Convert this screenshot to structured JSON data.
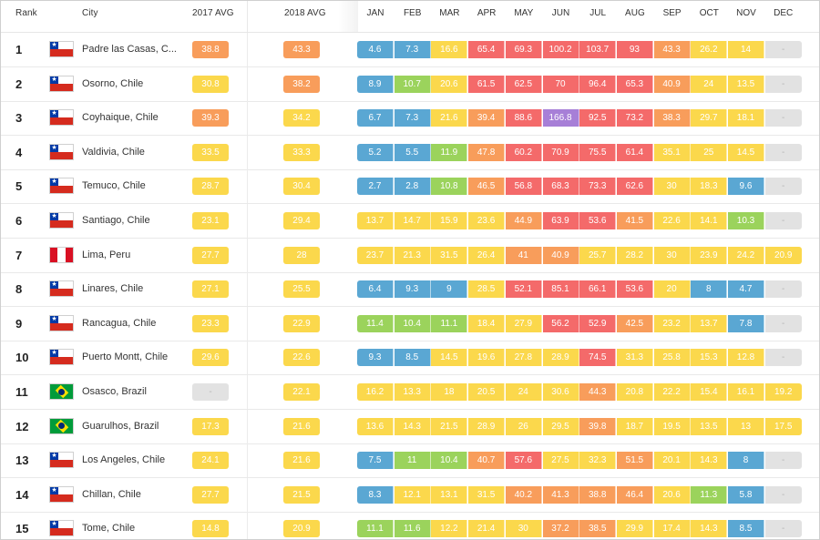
{
  "colors": {
    "blue": "#5aa7d3",
    "green": "#9bd35c",
    "yellow": "#fbd84c",
    "orange": "#f89d5b",
    "red": "#f46a6a",
    "purple": "#a77fd7",
    "gray": "#e2e2e2"
  },
  "header": {
    "rank": "Rank",
    "city": "City",
    "avg2017": "2017 AVG",
    "avg2018": "2018 AVG",
    "months": [
      "JAN",
      "FEB",
      "MAR",
      "APR",
      "MAY",
      "JUN",
      "JUL",
      "AUG",
      "SEP",
      "OCT",
      "NOV",
      "DEC"
    ]
  },
  "rows": [
    {
      "rank": "1",
      "country": "chile",
      "city": "Padre las Casas, C...",
      "avg2017": "38.8",
      "c2017": "orange",
      "avg2018": "43.3",
      "c2018": "orange",
      "months": [
        [
          "4.6",
          "blue"
        ],
        [
          "7.3",
          "blue"
        ],
        [
          "16.6",
          "yellow"
        ],
        [
          "65.4",
          "red"
        ],
        [
          "69.3",
          "red"
        ],
        [
          "100.2",
          "red"
        ],
        [
          "103.7",
          "red"
        ],
        [
          "93",
          "red"
        ],
        [
          "43.3",
          "orange"
        ],
        [
          "26.2",
          "yellow"
        ],
        [
          "14",
          "yellow"
        ],
        [
          "-",
          "gray"
        ]
      ]
    },
    {
      "rank": "2",
      "country": "chile",
      "city": "Osorno, Chile",
      "avg2017": "30.8",
      "c2017": "yellow",
      "avg2018": "38.2",
      "c2018": "orange",
      "months": [
        [
          "8.9",
          "blue"
        ],
        [
          "10.7",
          "green"
        ],
        [
          "20.6",
          "yellow"
        ],
        [
          "61.5",
          "red"
        ],
        [
          "62.5",
          "red"
        ],
        [
          "70",
          "red"
        ],
        [
          "96.4",
          "red"
        ],
        [
          "65.3",
          "red"
        ],
        [
          "40.9",
          "orange"
        ],
        [
          "24",
          "yellow"
        ],
        [
          "13.5",
          "yellow"
        ],
        [
          "-",
          "gray"
        ]
      ]
    },
    {
      "rank": "3",
      "country": "chile",
      "city": "Coyhaique, Chile",
      "avg2017": "39.3",
      "c2017": "orange",
      "avg2018": "34.2",
      "c2018": "yellow",
      "months": [
        [
          "6.7",
          "blue"
        ],
        [
          "7.3",
          "blue"
        ],
        [
          "21.6",
          "yellow"
        ],
        [
          "39.4",
          "orange"
        ],
        [
          "88.6",
          "red"
        ],
        [
          "166.8",
          "purple"
        ],
        [
          "92.5",
          "red"
        ],
        [
          "73.2",
          "red"
        ],
        [
          "38.3",
          "orange"
        ],
        [
          "29.7",
          "yellow"
        ],
        [
          "18.1",
          "yellow"
        ],
        [
          "-",
          "gray"
        ]
      ]
    },
    {
      "rank": "4",
      "country": "chile",
      "city": "Valdivia, Chile",
      "avg2017": "33.5",
      "c2017": "yellow",
      "avg2018": "33.3",
      "c2018": "yellow",
      "months": [
        [
          "5.2",
          "blue"
        ],
        [
          "5.5",
          "blue"
        ],
        [
          "11.9",
          "green"
        ],
        [
          "47.8",
          "orange"
        ],
        [
          "60.2",
          "red"
        ],
        [
          "70.9",
          "red"
        ],
        [
          "75.5",
          "red"
        ],
        [
          "61.4",
          "red"
        ],
        [
          "35.1",
          "yellow"
        ],
        [
          "25",
          "yellow"
        ],
        [
          "14.5",
          "yellow"
        ],
        [
          "-",
          "gray"
        ]
      ]
    },
    {
      "rank": "5",
      "country": "chile",
      "city": "Temuco, Chile",
      "avg2017": "28.7",
      "c2017": "yellow",
      "avg2018": "30.4",
      "c2018": "yellow",
      "months": [
        [
          "2.7",
          "blue"
        ],
        [
          "2.8",
          "blue"
        ],
        [
          "10.8",
          "green"
        ],
        [
          "46.5",
          "orange"
        ],
        [
          "56.8",
          "red"
        ],
        [
          "68.3",
          "red"
        ],
        [
          "73.3",
          "red"
        ],
        [
          "62.6",
          "red"
        ],
        [
          "30",
          "yellow"
        ],
        [
          "18.3",
          "yellow"
        ],
        [
          "9.6",
          "blue"
        ],
        [
          "-",
          "gray"
        ]
      ]
    },
    {
      "rank": "6",
      "country": "chile",
      "city": "Santiago, Chile",
      "avg2017": "23.1",
      "c2017": "yellow",
      "avg2018": "29.4",
      "c2018": "yellow",
      "months": [
        [
          "13.7",
          "yellow"
        ],
        [
          "14.7",
          "yellow"
        ],
        [
          "15.9",
          "yellow"
        ],
        [
          "23.6",
          "yellow"
        ],
        [
          "44.9",
          "orange"
        ],
        [
          "63.9",
          "red"
        ],
        [
          "53.6",
          "red"
        ],
        [
          "41.5",
          "orange"
        ],
        [
          "22.6",
          "yellow"
        ],
        [
          "14.1",
          "yellow"
        ],
        [
          "10.3",
          "green"
        ],
        [
          "-",
          "gray"
        ]
      ]
    },
    {
      "rank": "7",
      "country": "peru",
      "city": "Lima, Peru",
      "avg2017": "27.7",
      "c2017": "yellow",
      "avg2018": "28",
      "c2018": "yellow",
      "months": [
        [
          "23.7",
          "yellow"
        ],
        [
          "21.3",
          "yellow"
        ],
        [
          "31.5",
          "yellow"
        ],
        [
          "26.4",
          "yellow"
        ],
        [
          "41",
          "orange"
        ],
        [
          "40.9",
          "orange"
        ],
        [
          "25.7",
          "yellow"
        ],
        [
          "28.2",
          "yellow"
        ],
        [
          "30",
          "yellow"
        ],
        [
          "23.9",
          "yellow"
        ],
        [
          "24.2",
          "yellow"
        ],
        [
          "20.9",
          "yellow"
        ]
      ]
    },
    {
      "rank": "8",
      "country": "chile",
      "city": "Linares, Chile",
      "avg2017": "27.1",
      "c2017": "yellow",
      "avg2018": "25.5",
      "c2018": "yellow",
      "months": [
        [
          "6.4",
          "blue"
        ],
        [
          "9.3",
          "blue"
        ],
        [
          "9",
          "blue"
        ],
        [
          "28.5",
          "yellow"
        ],
        [
          "52.1",
          "red"
        ],
        [
          "85.1",
          "red"
        ],
        [
          "66.1",
          "red"
        ],
        [
          "53.6",
          "red"
        ],
        [
          "20",
          "yellow"
        ],
        [
          "8",
          "blue"
        ],
        [
          "4.7",
          "blue"
        ],
        [
          "-",
          "gray"
        ]
      ]
    },
    {
      "rank": "9",
      "country": "chile",
      "city": "Rancagua, Chile",
      "avg2017": "23.3",
      "c2017": "yellow",
      "avg2018": "22.9",
      "c2018": "yellow",
      "months": [
        [
          "11.4",
          "green"
        ],
        [
          "10.4",
          "green"
        ],
        [
          "11.1",
          "green"
        ],
        [
          "18.4",
          "yellow"
        ],
        [
          "27.9",
          "yellow"
        ],
        [
          "56.2",
          "red"
        ],
        [
          "52.9",
          "red"
        ],
        [
          "42.5",
          "orange"
        ],
        [
          "23.2",
          "yellow"
        ],
        [
          "13.7",
          "yellow"
        ],
        [
          "7.8",
          "blue"
        ],
        [
          "-",
          "gray"
        ]
      ]
    },
    {
      "rank": "10",
      "country": "chile",
      "city": "Puerto Montt, Chile",
      "avg2017": "29.6",
      "c2017": "yellow",
      "avg2018": "22.6",
      "c2018": "yellow",
      "months": [
        [
          "9.3",
          "blue"
        ],
        [
          "8.5",
          "blue"
        ],
        [
          "14.5",
          "yellow"
        ],
        [
          "19.6",
          "yellow"
        ],
        [
          "27.8",
          "yellow"
        ],
        [
          "28.9",
          "yellow"
        ],
        [
          "74.5",
          "red"
        ],
        [
          "31.3",
          "yellow"
        ],
        [
          "25.8",
          "yellow"
        ],
        [
          "15.3",
          "yellow"
        ],
        [
          "12.8",
          "yellow"
        ],
        [
          "-",
          "gray"
        ]
      ]
    },
    {
      "rank": "11",
      "country": "brazil",
      "city": "Osasco, Brazil",
      "avg2017": "-",
      "c2017": "gray",
      "avg2018": "22.1",
      "c2018": "yellow",
      "months": [
        [
          "16.2",
          "yellow"
        ],
        [
          "13.3",
          "yellow"
        ],
        [
          "18",
          "yellow"
        ],
        [
          "20.5",
          "yellow"
        ],
        [
          "24",
          "yellow"
        ],
        [
          "30.6",
          "yellow"
        ],
        [
          "44.3",
          "orange"
        ],
        [
          "20.8",
          "yellow"
        ],
        [
          "22.2",
          "yellow"
        ],
        [
          "15.4",
          "yellow"
        ],
        [
          "16.1",
          "yellow"
        ],
        [
          "19.2",
          "yellow"
        ]
      ]
    },
    {
      "rank": "12",
      "country": "brazil",
      "city": "Guarulhos, Brazil",
      "avg2017": "17.3",
      "c2017": "yellow",
      "avg2018": "21.6",
      "c2018": "yellow",
      "months": [
        [
          "13.6",
          "yellow"
        ],
        [
          "14.3",
          "yellow"
        ],
        [
          "21.5",
          "yellow"
        ],
        [
          "28.9",
          "yellow"
        ],
        [
          "26",
          "yellow"
        ],
        [
          "29.5",
          "yellow"
        ],
        [
          "39.8",
          "orange"
        ],
        [
          "18.7",
          "yellow"
        ],
        [
          "19.5",
          "yellow"
        ],
        [
          "13.5",
          "yellow"
        ],
        [
          "13",
          "yellow"
        ],
        [
          "17.5",
          "yellow"
        ]
      ]
    },
    {
      "rank": "13",
      "country": "chile",
      "city": "Los Angeles, Chile",
      "avg2017": "24.1",
      "c2017": "yellow",
      "avg2018": "21.6",
      "c2018": "yellow",
      "months": [
        [
          "7.5",
          "blue"
        ],
        [
          "11",
          "green"
        ],
        [
          "10.4",
          "green"
        ],
        [
          "40.7",
          "orange"
        ],
        [
          "57.6",
          "red"
        ],
        [
          "27.5",
          "yellow"
        ],
        [
          "32.3",
          "yellow"
        ],
        [
          "51.5",
          "orange"
        ],
        [
          "20.1",
          "yellow"
        ],
        [
          "14.3",
          "yellow"
        ],
        [
          "8",
          "blue"
        ],
        [
          "-",
          "gray"
        ]
      ]
    },
    {
      "rank": "14",
      "country": "chile",
      "city": "Chillan, Chile",
      "avg2017": "27.7",
      "c2017": "yellow",
      "avg2018": "21.5",
      "c2018": "yellow",
      "months": [
        [
          "8.3",
          "blue"
        ],
        [
          "12.1",
          "yellow"
        ],
        [
          "13.1",
          "yellow"
        ],
        [
          "31.5",
          "yellow"
        ],
        [
          "40.2",
          "orange"
        ],
        [
          "41.3",
          "orange"
        ],
        [
          "38.8",
          "orange"
        ],
        [
          "46.4",
          "orange"
        ],
        [
          "20.6",
          "yellow"
        ],
        [
          "11.3",
          "green"
        ],
        [
          "5.8",
          "blue"
        ],
        [
          "-",
          "gray"
        ]
      ]
    },
    {
      "rank": "15",
      "country": "chile",
      "city": "Tome, Chile",
      "avg2017": "14.8",
      "c2017": "yellow",
      "avg2018": "20.9",
      "c2018": "yellow",
      "months": [
        [
          "11.1",
          "green"
        ],
        [
          "11.6",
          "green"
        ],
        [
          "12.2",
          "yellow"
        ],
        [
          "21.4",
          "yellow"
        ],
        [
          "30",
          "yellow"
        ],
        [
          "37.2",
          "orange"
        ],
        [
          "38.5",
          "orange"
        ],
        [
          "29.9",
          "yellow"
        ],
        [
          "17.4",
          "yellow"
        ],
        [
          "14.3",
          "yellow"
        ],
        [
          "8.5",
          "blue"
        ],
        [
          "-",
          "gray"
        ]
      ]
    }
  ]
}
